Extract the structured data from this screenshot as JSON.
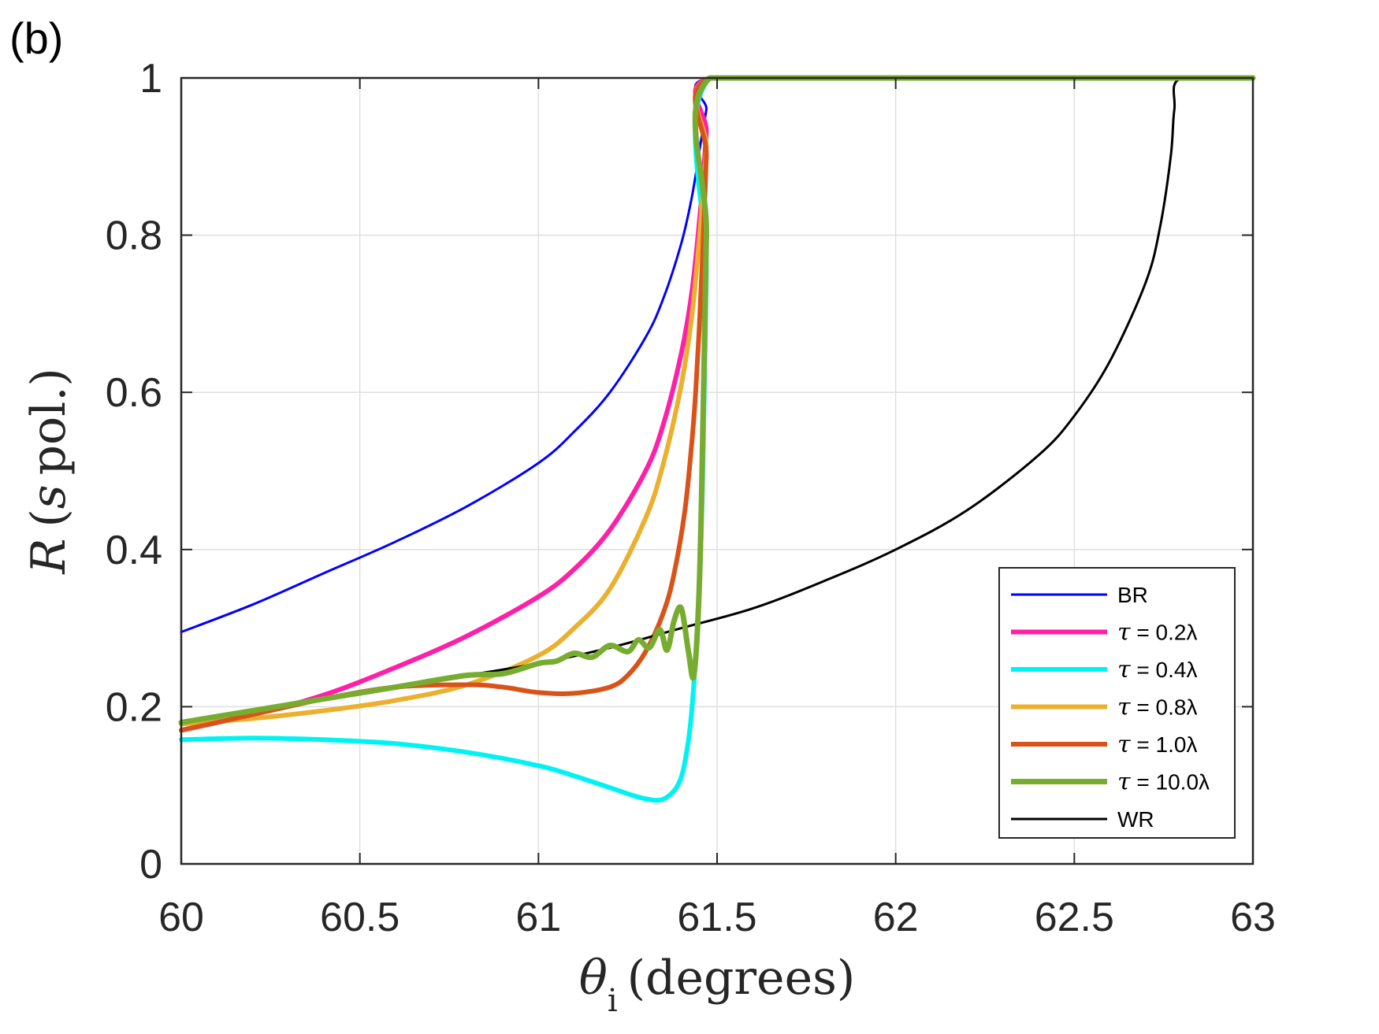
{
  "panel_label": "(b)",
  "chart_data": {
    "type": "line",
    "title": "",
    "xlabel": {
      "symbol": "θ",
      "subscript": "i",
      "text": "(degrees)"
    },
    "ylabel": {
      "symbol": "R",
      "text_open": "(",
      "italic": "s",
      "text_close": "pol.)"
    },
    "xlim": [
      60,
      63
    ],
    "ylim": [
      0,
      1
    ],
    "xticks": [
      60,
      60.5,
      61,
      61.5,
      62,
      62.5,
      63
    ],
    "xtick_labels": [
      "60",
      "60.5",
      "61",
      "61.5",
      "62",
      "62.5",
      "63"
    ],
    "yticks": [
      0,
      0.2,
      0.4,
      0.6,
      0.8,
      1
    ],
    "ytick_labels": [
      "0",
      "0.2",
      "0.4",
      "0.6",
      "0.8",
      "1"
    ],
    "grid": true,
    "legend_position": "bottom-right",
    "series": [
      {
        "name": "BR",
        "label_prefix": "",
        "label_value": "BR",
        "color": "#0000ff",
        "width": 3,
        "x": [
          60.0,
          60.2,
          60.4,
          60.6,
          60.8,
          61.0,
          61.1,
          61.2,
          61.3,
          61.35,
          61.4,
          61.43,
          61.455,
          61.47,
          61.48,
          62.0,
          62.5,
          63.0
        ],
        "y": [
          0.295,
          0.33,
          0.37,
          0.41,
          0.455,
          0.51,
          0.55,
          0.6,
          0.67,
          0.72,
          0.79,
          0.85,
          0.92,
          0.96,
          1.0,
          1.0,
          1.0,
          1.0
        ]
      },
      {
        "name": "tau-0.2",
        "label_prefix": "τ",
        "label_value": " = 0.2λ",
        "color": "#ff1fa8",
        "width": 6,
        "x": [
          60.0,
          60.2,
          60.4,
          60.6,
          60.8,
          61.0,
          61.1,
          61.2,
          61.3,
          61.35,
          61.4,
          61.43,
          61.455,
          61.47,
          61.48,
          62.0,
          62.5,
          63.0
        ],
        "y": [
          0.17,
          0.19,
          0.215,
          0.25,
          0.29,
          0.34,
          0.375,
          0.425,
          0.5,
          0.56,
          0.65,
          0.73,
          0.84,
          0.93,
          1.0,
          1.0,
          1.0,
          1.0
        ]
      },
      {
        "name": "tau-0.4",
        "label_prefix": "τ",
        "label_value": " = 0.4λ",
        "color": "#00f3f3",
        "width": 6,
        "x": [
          60.0,
          60.2,
          60.4,
          60.6,
          60.8,
          61.0,
          61.1,
          61.2,
          61.28,
          61.33,
          61.36,
          61.39,
          61.41,
          61.43,
          61.45,
          61.46,
          61.47,
          61.48,
          62.0,
          62.5,
          63.0
        ],
        "y": [
          0.158,
          0.16,
          0.158,
          0.153,
          0.142,
          0.125,
          0.112,
          0.097,
          0.085,
          0.081,
          0.085,
          0.1,
          0.13,
          0.2,
          0.35,
          0.5,
          0.75,
          1.0,
          1.0,
          1.0,
          1.0
        ]
      },
      {
        "name": "tau-0.8",
        "label_prefix": "τ",
        "label_value": " = 0.8λ",
        "color": "#eab02e",
        "width": 6,
        "x": [
          60.0,
          60.2,
          60.4,
          60.6,
          60.8,
          61.0,
          61.1,
          61.2,
          61.3,
          61.35,
          61.4,
          61.43,
          61.455,
          61.47,
          61.48,
          62.0,
          62.5,
          63.0
        ],
        "y": [
          0.178,
          0.185,
          0.195,
          0.208,
          0.228,
          0.265,
          0.3,
          0.35,
          0.44,
          0.51,
          0.61,
          0.7,
          0.82,
          0.91,
          1.0,
          1.0,
          1.0,
          1.0
        ]
      },
      {
        "name": "tau-1.0",
        "label_prefix": "τ",
        "label_value": " = 1.0λ",
        "color": "#d95319",
        "width": 6,
        "x": [
          60.0,
          60.2,
          60.4,
          60.6,
          60.8,
          60.9,
          61.0,
          61.1,
          61.2,
          61.25,
          61.3,
          61.35,
          61.38,
          61.41,
          61.43,
          61.44,
          61.45,
          61.46,
          61.47,
          61.48,
          62.0,
          62.5,
          63.0
        ],
        "y": [
          0.17,
          0.19,
          0.21,
          0.225,
          0.228,
          0.225,
          0.218,
          0.217,
          0.225,
          0.24,
          0.27,
          0.32,
          0.37,
          0.45,
          0.54,
          0.6,
          0.68,
          0.78,
          0.9,
          1.0,
          1.0,
          1.0,
          1.0
        ]
      },
      {
        "name": "tau-10.0",
        "label_prefix": "τ",
        "label_value": " = 10.0λ",
        "color": "#77ac30",
        "width": 7,
        "x": [
          60.0,
          60.2,
          60.4,
          60.6,
          60.8,
          60.9,
          61.0,
          61.05,
          61.1,
          61.15,
          61.2,
          61.25,
          61.28,
          61.31,
          61.34,
          61.36,
          61.38,
          61.4,
          61.42,
          61.435,
          61.45,
          61.46,
          61.47,
          61.48,
          62.0,
          62.5,
          63.0
        ],
        "y": [
          0.18,
          0.195,
          0.21,
          0.225,
          0.24,
          0.242,
          0.255,
          0.258,
          0.268,
          0.263,
          0.278,
          0.27,
          0.285,
          0.275,
          0.298,
          0.272,
          0.31,
          0.325,
          0.27,
          0.24,
          0.35,
          0.55,
          0.8,
          1.0,
          1.0,
          1.0,
          1.0
        ]
      },
      {
        "name": "WR",
        "label_prefix": "",
        "label_value": "WR",
        "color": "#000000",
        "width": 3,
        "x": [
          60.0,
          60.2,
          60.4,
          60.6,
          60.8,
          61.0,
          61.2,
          61.4,
          61.6,
          61.8,
          62.0,
          62.2,
          62.4,
          62.5,
          62.6,
          62.7,
          62.74,
          62.77,
          62.78,
          62.8,
          63.0
        ],
        "y": [
          0.18,
          0.195,
          0.21,
          0.225,
          0.24,
          0.255,
          0.275,
          0.3,
          0.325,
          0.36,
          0.4,
          0.45,
          0.52,
          0.57,
          0.64,
          0.74,
          0.81,
          0.9,
          0.96,
          1.0,
          1.0
        ]
      }
    ]
  }
}
